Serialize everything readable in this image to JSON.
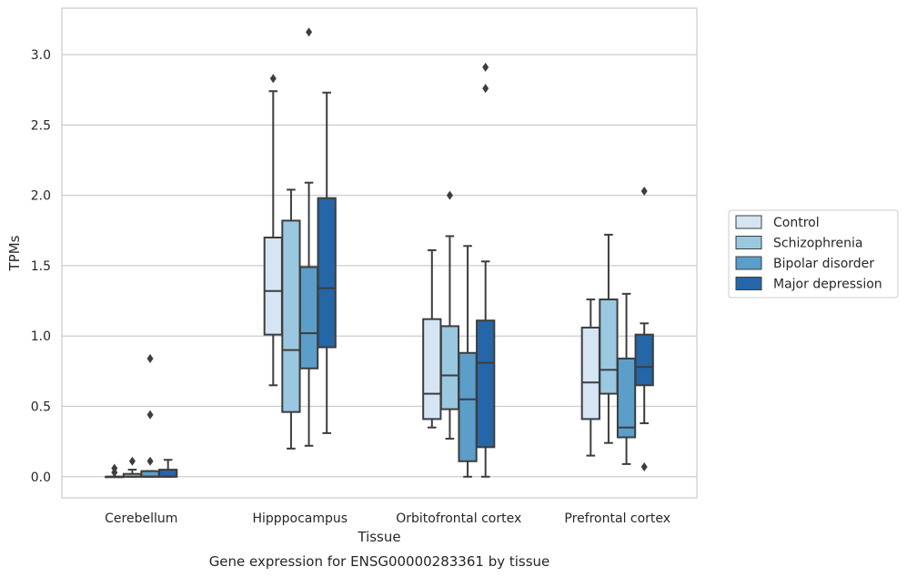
{
  "chart_data": {
    "type": "box",
    "title": "",
    "caption": "Gene expression for ENSG00000283361 by tissue",
    "xlabel": "Tissue",
    "ylabel": "TPMs",
    "ylim": [
      -0.15,
      3.33
    ],
    "yticks": [
      0.0,
      0.5,
      1.0,
      1.5,
      2.0,
      2.5,
      3.0
    ],
    "ytick_labels": [
      "0.0",
      "0.5",
      "1.0",
      "1.5",
      "2.0",
      "2.5",
      "3.0"
    ],
    "grid": "horizontal",
    "legend_position": "right",
    "categories": [
      "Cerebellum",
      "Hipppocampus",
      "Orbitofrontal cortex",
      "Prefrontal cortex"
    ],
    "series": [
      {
        "name": "Control",
        "color": "#d6e5f4",
        "boxes": [
          {
            "whislo": 0.0,
            "q1": 0.0,
            "med": 0.0,
            "q3": 0.0,
            "whishi": 0.0,
            "fliers": [
              0.03,
              0.06
            ]
          },
          {
            "whislo": 0.65,
            "q1": 1.01,
            "med": 1.32,
            "q3": 1.7,
            "whishi": 2.74,
            "fliers": [
              2.83
            ]
          },
          {
            "whislo": 0.35,
            "q1": 0.41,
            "med": 0.59,
            "q3": 1.12,
            "whishi": 1.61,
            "fliers": []
          },
          {
            "whislo": 0.15,
            "q1": 0.41,
            "med": 0.67,
            "q3": 1.06,
            "whishi": 1.26,
            "fliers": []
          }
        ]
      },
      {
        "name": "Schizophrenia",
        "color": "#9ac8e0",
        "boxes": [
          {
            "whislo": 0.0,
            "q1": 0.0,
            "med": 0.0,
            "q3": 0.02,
            "whishi": 0.05,
            "fliers": [
              0.11
            ]
          },
          {
            "whislo": 0.2,
            "q1": 0.46,
            "med": 0.9,
            "q3": 1.82,
            "whishi": 2.04,
            "fliers": []
          },
          {
            "whislo": 0.27,
            "q1": 0.48,
            "med": 0.72,
            "q3": 1.07,
            "whishi": 1.71,
            "fliers": [
              2.0
            ]
          },
          {
            "whislo": 0.24,
            "q1": 0.59,
            "med": 0.76,
            "q3": 1.26,
            "whishi": 1.72,
            "fliers": []
          }
        ]
      },
      {
        "name": "Bipolar disorder",
        "color": "#5a9ec9",
        "boxes": [
          {
            "whislo": 0.0,
            "q1": 0.0,
            "med": 0.0,
            "q3": 0.04,
            "whishi": 0.04,
            "fliers": [
              0.11,
              0.44,
              0.84
            ]
          },
          {
            "whislo": 0.22,
            "q1": 0.77,
            "med": 1.02,
            "q3": 1.49,
            "whishi": 2.09,
            "fliers": [
              3.16
            ]
          },
          {
            "whislo": 0.0,
            "q1": 0.11,
            "med": 0.55,
            "q3": 0.88,
            "whishi": 1.64,
            "fliers": []
          },
          {
            "whislo": 0.09,
            "q1": 0.28,
            "med": 0.35,
            "q3": 0.84,
            "whishi": 1.3,
            "fliers": []
          }
        ]
      },
      {
        "name": "Major depression",
        "color": "#2466a8",
        "boxes": [
          {
            "whislo": 0.0,
            "q1": 0.0,
            "med": 0.0,
            "q3": 0.05,
            "whishi": 0.12,
            "fliers": []
          },
          {
            "whislo": 0.31,
            "q1": 0.92,
            "med": 1.34,
            "q3": 1.98,
            "whishi": 2.73,
            "fliers": []
          },
          {
            "whislo": 0.0,
            "q1": 0.21,
            "med": 0.81,
            "q3": 1.11,
            "whishi": 1.53,
            "fliers": [
              2.76,
              2.91
            ]
          },
          {
            "whislo": 0.38,
            "q1": 0.65,
            "med": 0.78,
            "q3": 1.01,
            "whishi": 1.09,
            "fliers": [
              0.07,
              2.03
            ]
          }
        ]
      }
    ]
  }
}
